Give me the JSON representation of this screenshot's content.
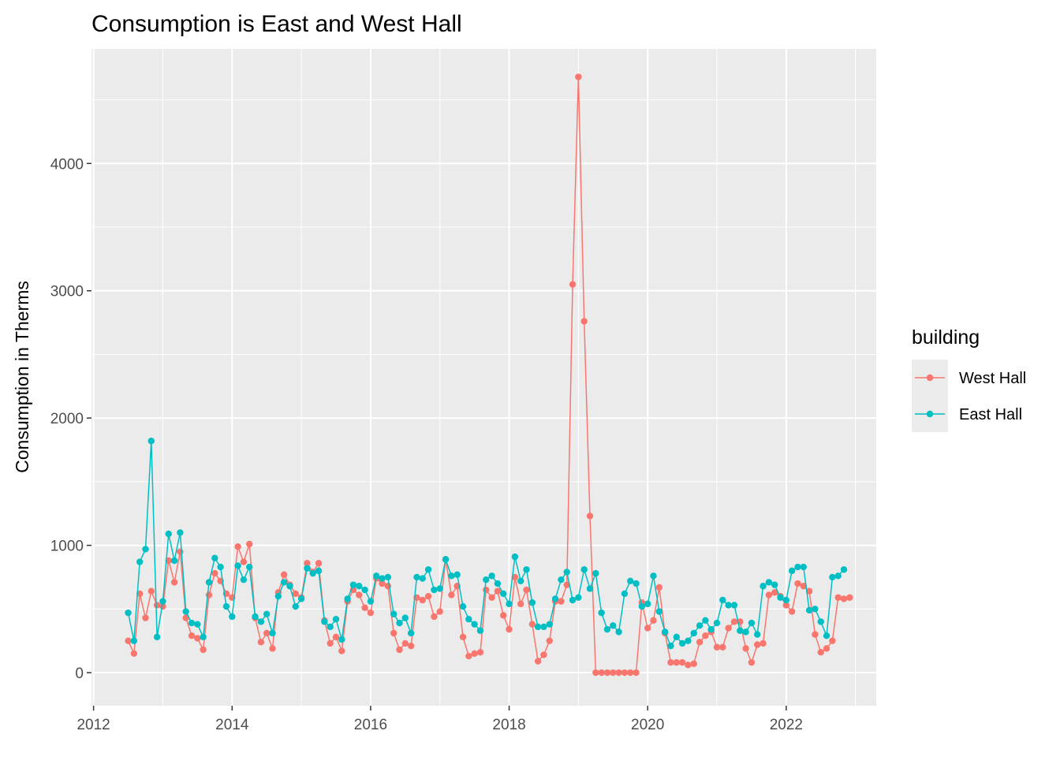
{
  "chart_data": {
    "type": "line",
    "title": "Consumption is East and West Hall",
    "xlabel": "",
    "ylabel": "Consumption in Therms",
    "xlim": [
      2011.97,
      2023.3
    ],
    "ylim": [
      -260,
      4900
    ],
    "x_ticks": [
      2012,
      2014,
      2016,
      2018,
      2020,
      2022
    ],
    "x_tick_labels": [
      "2012",
      "2014",
      "2016",
      "2018",
      "2020",
      "2022"
    ],
    "y_ticks": [
      0,
      1000,
      2000,
      3000,
      4000
    ],
    "y_tick_labels": [
      "0",
      "1000",
      "2000",
      "3000",
      "4000"
    ],
    "x_start": 2012.5,
    "x_step": 0.0833333,
    "grid": true,
    "panel_background": "#ebebeb",
    "legend": {
      "title": "building",
      "position": "right"
    },
    "series": [
      {
        "name": "West Hall",
        "color": "#F8766D",
        "values": [
          250,
          150,
          620,
          430,
          640,
          530,
          520,
          880,
          710,
          950,
          430,
          290,
          270,
          180,
          610,
          780,
          720,
          620,
          590,
          990,
          870,
          1010,
          430,
          240,
          310,
          190,
          630,
          770,
          690,
          620,
          590,
          860,
          790,
          860,
          410,
          230,
          280,
          170,
          560,
          650,
          610,
          510,
          470,
          740,
          700,
          680,
          310,
          180,
          230,
          210,
          590,
          570,
          600,
          440,
          480,
          890,
          610,
          680,
          280,
          130,
          150,
          160,
          650,
          590,
          640,
          450,
          340,
          750,
          540,
          650,
          380,
          90,
          140,
          250,
          560,
          560,
          690,
          3050,
          4680,
          2760,
          1230,
          0,
          0,
          0,
          0,
          0,
          0,
          0,
          0,
          550,
          350,
          410,
          670,
          310,
          80,
          80,
          80,
          60,
          70,
          240,
          290,
          320,
          200,
          200,
          350,
          400,
          400,
          190,
          80,
          220,
          230,
          610,
          630,
          600,
          530,
          480,
          700,
          680,
          640,
          300,
          160,
          190,
          250,
          590,
          580,
          590
        ]
      },
      {
        "name": "East Hall",
        "color": "#00BFC4",
        "values": [
          470,
          250,
          870,
          970,
          1820,
          280,
          560,
          1090,
          880,
          1100,
          480,
          390,
          380,
          280,
          710,
          900,
          830,
          520,
          440,
          840,
          730,
          830,
          440,
          400,
          460,
          310,
          600,
          710,
          680,
          520,
          580,
          820,
          780,
          800,
          400,
          360,
          420,
          260,
          580,
          690,
          680,
          650,
          560,
          760,
          740,
          750,
          460,
          390,
          430,
          310,
          750,
          740,
          810,
          650,
          660,
          890,
          760,
          770,
          520,
          420,
          380,
          330,
          730,
          760,
          700,
          620,
          540,
          910,
          720,
          810,
          550,
          360,
          360,
          380,
          580,
          730,
          790,
          570,
          590,
          810,
          660,
          780,
          470,
          340,
          370,
          320,
          620,
          720,
          700,
          520,
          540,
          760,
          480,
          320,
          210,
          280,
          230,
          250,
          310,
          370,
          410,
          340,
          390,
          570,
          530,
          530,
          330,
          320,
          390,
          300,
          680,
          710,
          690,
          590,
          570,
          800,
          830,
          830,
          490,
          500,
          400,
          290,
          750,
          760,
          810
        ]
      }
    ]
  }
}
